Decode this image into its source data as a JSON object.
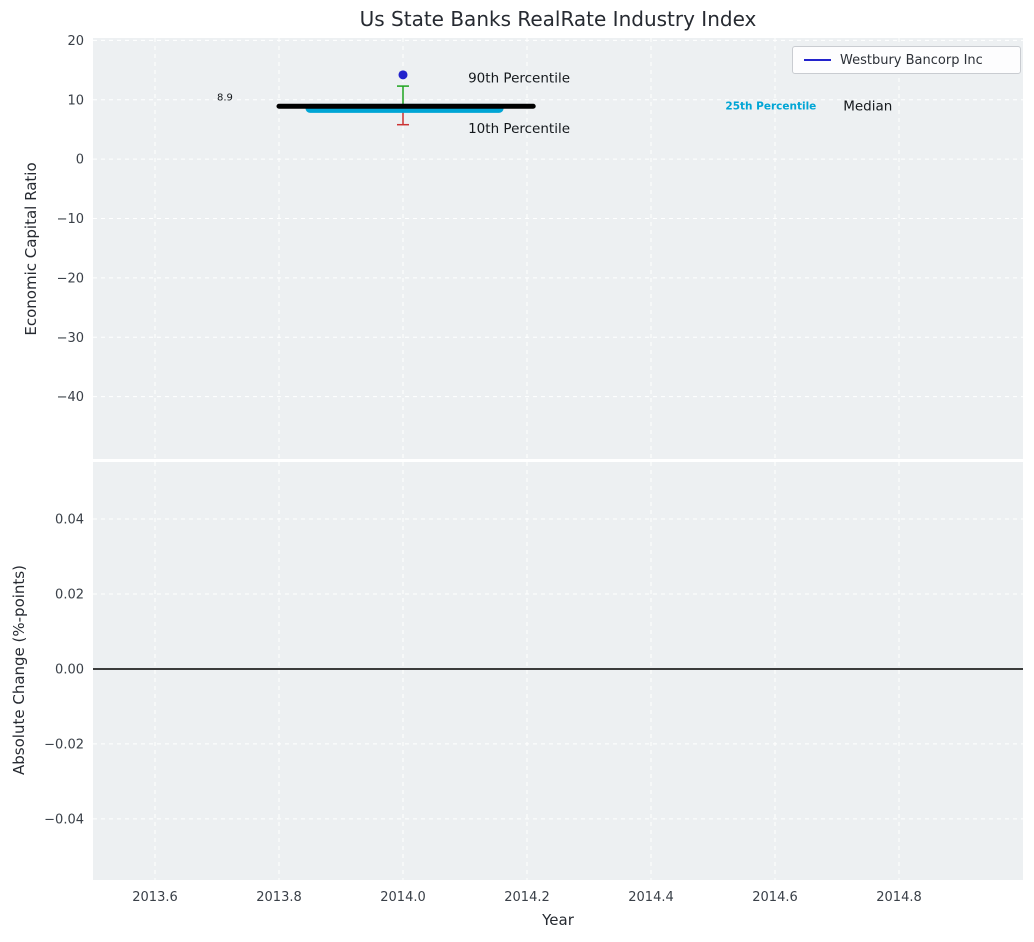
{
  "title": "Us State Banks RealRate Industry Index",
  "legend": {
    "label": "Westbury Bancorp Inc"
  },
  "axes": {
    "top_ylabel": "Economic Capital Ratio",
    "bottom_ylabel": "Absolute Change (%-points)",
    "xlabel": "Year"
  },
  "colors": {
    "background": "#edf0f2",
    "grid": "#ffffff",
    "tick_text": "#3a4048",
    "annotation_text": "#14181c",
    "median": "#000000",
    "p25": "#00a5d5",
    "company": "#2222cc",
    "p90": "#1fa41f",
    "p10": "#cc3333"
  },
  "chart_data": [
    {
      "type": "line",
      "title": "Us State Banks RealRate Industry Index",
      "ylabel": "Economic Capital Ratio",
      "xlim": [
        2013.5,
        2015.0
      ],
      "ylim": [
        -50.5,
        20.4
      ],
      "grid": true,
      "legend_position": "upper right",
      "legend_entries": [
        {
          "label": "Westbury Bancorp Inc",
          "color_key": "company"
        }
      ],
      "yticks": [
        {
          "v": 20,
          "label": "20"
        },
        {
          "v": 10,
          "label": "10"
        },
        {
          "v": 0,
          "label": "0"
        },
        {
          "v": -10,
          "label": "−10"
        },
        {
          "v": -20,
          "label": "−20"
        },
        {
          "v": -30,
          "label": "−30"
        },
        {
          "v": -40,
          "label": "−40"
        }
      ],
      "xticks": [
        {
          "v": 2013.6,
          "label": ""
        },
        {
          "v": 2013.8,
          "label": ""
        },
        {
          "v": 2014.0,
          "label": ""
        },
        {
          "v": 2014.2,
          "label": ""
        },
        {
          "v": 2014.4,
          "label": ""
        },
        {
          "v": 2014.6,
          "label": ""
        },
        {
          "v": 2014.8,
          "label": ""
        }
      ],
      "series": [
        {
          "name": "90th Percentile",
          "style": "errorbar",
          "color_key": "p90",
          "x": 2014.0,
          "y": [
            12.3,
            8.9
          ],
          "cap": "top",
          "capw": 12,
          "lw": 1.5
        },
        {
          "name": "10th Percentile",
          "style": "errorbar",
          "color_key": "p10",
          "x": 2014.0,
          "y": [
            8.0,
            5.8
          ],
          "cap": "bottom",
          "capw": 12,
          "lw": 1.5
        },
        {
          "name": "25th Percentile",
          "style": "segment",
          "color_key": "p25",
          "x": [
            2013.85,
            2014.155
          ],
          "y": 8.55,
          "lw": 9
        },
        {
          "name": "Median",
          "style": "segment",
          "color_key": "median",
          "x": [
            2013.8,
            2014.21
          ],
          "y": 8.9,
          "lw": 5
        },
        {
          "name": "Westbury Bancorp Inc",
          "style": "point",
          "color_key": "company",
          "x": 2014.0,
          "y": 14.2,
          "r": 4.5
        }
      ],
      "annotations": [
        {
          "text": "8.9",
          "x": 2013.7,
          "y": 10.5,
          "size": 10,
          "color_key": "annotation_text",
          "bold": false
        },
        {
          "text": "90th Percentile",
          "x": 2014.105,
          "y": 13.7,
          "size": 13.5,
          "color_key": "annotation_text",
          "bold": false
        },
        {
          "text": "10th Percentile",
          "x": 2014.105,
          "y": 5.2,
          "size": 13.5,
          "color_key": "annotation_text",
          "bold": false
        },
        {
          "text": "25th Percentile",
          "x": 2014.52,
          "y": 9.0,
          "size": 10.5,
          "color_key": "p25",
          "bold": true
        },
        {
          "text": "Median",
          "x": 2014.71,
          "y": 9.0,
          "size": 13.5,
          "color_key": "annotation_text",
          "bold": false
        }
      ]
    },
    {
      "type": "line",
      "ylabel": "Absolute Change (%-points)",
      "xlabel": "Year",
      "xlim": [
        2013.5,
        2015.0
      ],
      "ylim": [
        -0.0563,
        0.0552
      ],
      "grid": true,
      "yticks": [
        {
          "v": 0.04,
          "label": "0.04"
        },
        {
          "v": 0.02,
          "label": "0.02"
        },
        {
          "v": 0.0,
          "label": "0.00"
        },
        {
          "v": -0.02,
          "label": "−0.02"
        },
        {
          "v": -0.04,
          "label": "−0.04"
        }
      ],
      "xticks": [
        {
          "v": 2013.6,
          "label": "2013.6"
        },
        {
          "v": 2013.8,
          "label": "2013.8"
        },
        {
          "v": 2014.0,
          "label": "2014.0"
        },
        {
          "v": 2014.2,
          "label": "2014.2"
        },
        {
          "v": 2014.4,
          "label": "2014.4"
        },
        {
          "v": 2014.6,
          "label": "2014.6"
        },
        {
          "v": 2014.8,
          "label": "2014.8"
        }
      ],
      "series": [
        {
          "name": "zero line",
          "style": "hline",
          "color_key": "median",
          "y": 0,
          "lw": 1.5
        }
      ],
      "annotations": []
    }
  ]
}
